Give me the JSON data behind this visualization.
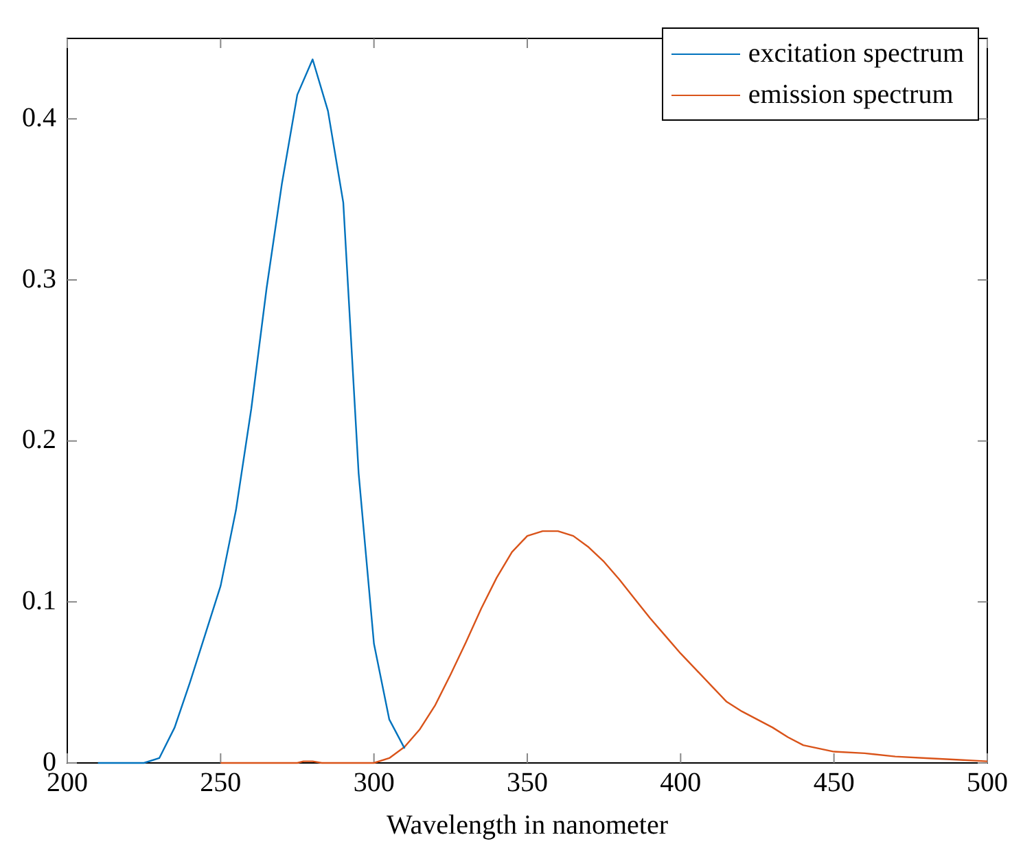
{
  "chart_data": {
    "type": "line",
    "xlabel": "Wavelength in nanometer",
    "xlim": [
      200,
      500
    ],
    "xticks": [
      200,
      250,
      300,
      350,
      400,
      450,
      500
    ],
    "ylim": [
      0,
      0.45
    ],
    "yticks": [
      0,
      0.1,
      0.2,
      0.3,
      0.4
    ],
    "grid": false,
    "legend": "top right",
    "marker": "none",
    "line_style": "solid",
    "series": [
      {
        "name": "excitation spectrum",
        "color": "#0072bd",
        "x": [
          210,
          215,
          220,
          225,
          230,
          235,
          240,
          245,
          250,
          255,
          260,
          265,
          270,
          275,
          280,
          285,
          290,
          295,
          300,
          305,
          310
        ],
        "values": [
          0,
          0,
          0,
          0,
          0.003,
          0.022,
          0.05,
          0.08,
          0.11,
          0.157,
          0.22,
          0.295,
          0.36,
          0.415,
          0.437,
          0.405,
          0.348,
          0.18,
          0.074,
          0.027,
          0.009
        ]
      },
      {
        "name": "emission spectrum",
        "color": "#d95319",
        "x": [
          250,
          275,
          277,
          280,
          283,
          300,
          305,
          310,
          315,
          320,
          325,
          330,
          335,
          340,
          345,
          350,
          355,
          360,
          365,
          370,
          375,
          380,
          385,
          390,
          395,
          400,
          405,
          410,
          415,
          420,
          425,
          430,
          435,
          440,
          445,
          450,
          460,
          470,
          480,
          490,
          500
        ],
        "values": [
          0,
          0,
          0.001,
          0.001,
          0,
          0,
          0.003,
          0.01,
          0.021,
          0.036,
          0.055,
          0.075,
          0.096,
          0.115,
          0.131,
          0.141,
          0.144,
          0.144,
          0.141,
          0.134,
          0.125,
          0.114,
          0.102,
          0.09,
          0.079,
          0.068,
          0.058,
          0.048,
          0.038,
          0.032,
          0.027,
          0.022,
          0.016,
          0.011,
          0.009,
          0.007,
          0.006,
          0.004,
          0.003,
          0.002,
          0.001
        ]
      }
    ]
  }
}
